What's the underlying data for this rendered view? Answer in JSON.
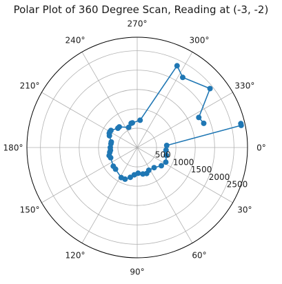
{
  "chart_data": {
    "type": "scatter",
    "projection": "polar",
    "title": "Polar Plot of 360 Degree Scan, Reading at (-3, -2)",
    "theta_direction": "clockwise",
    "theta_zero_location": "east",
    "theta_ticks": [
      "0°",
      "30°",
      "60°",
      "90°",
      "120°",
      "150°",
      "180°",
      "210°",
      "240°",
      "270°",
      "300°",
      "330°"
    ],
    "theta_tick_values": [
      0,
      30,
      60,
      90,
      120,
      150,
      180,
      210,
      240,
      270,
      300,
      330
    ],
    "r_ticks": [
      "500",
      "1000",
      "1500",
      "2000",
      "2500"
    ],
    "r_tick_values": [
      500,
      1000,
      1500,
      2000,
      2500
    ],
    "r_label_angle": 22.5,
    "rlim": [
      0,
      2850
    ],
    "grid": true,
    "marker": "circle",
    "line": true,
    "series": [
      {
        "color": "#1f77b4",
        "points": [
          {
            "theta": 347,
            "r": 2747
          },
          {
            "theta": 348,
            "r": 2747
          },
          {
            "theta": 356,
            "r": 765
          },
          {
            "theta": 5,
            "r": 748
          },
          {
            "theta": 15,
            "r": 780
          },
          {
            "theta": 27,
            "r": 830
          },
          {
            "theta": 37,
            "r": 780
          },
          {
            "theta": 50,
            "r": 680
          },
          {
            "theta": 63,
            "r": 660
          },
          {
            "theta": 70,
            "r": 715
          },
          {
            "theta": 78,
            "r": 700
          },
          {
            "theta": 88,
            "r": 665
          },
          {
            "theta": 96,
            "r": 710
          },
          {
            "theta": 103,
            "r": 790
          },
          {
            "theta": 111,
            "r": 875
          },
          {
            "theta": 118,
            "r": 880
          },
          {
            "theta": 135,
            "r": 790
          },
          {
            "theta": 142,
            "r": 785
          },
          {
            "theta": 159,
            "r": 735
          },
          {
            "theta": 164,
            "r": 755
          },
          {
            "theta": 170,
            "r": 720
          },
          {
            "theta": 174,
            "r": 695
          },
          {
            "theta": 180,
            "r": 695
          },
          {
            "theta": 188,
            "r": 685
          },
          {
            "theta": 192,
            "r": 685
          },
          {
            "theta": 203,
            "r": 780
          },
          {
            "theta": 207,
            "r": 810
          },
          {
            "theta": 210,
            "r": 815
          },
          {
            "theta": 213,
            "r": 810
          },
          {
            "theta": 225,
            "r": 705
          },
          {
            "theta": 229,
            "r": 705
          },
          {
            "theta": 247,
            "r": 565
          },
          {
            "theta": 256,
            "r": 645
          },
          {
            "theta": 259,
            "r": 650
          },
          {
            "theta": 276,
            "r": 710
          },
          {
            "theta": 296,
            "r": 2350
          },
          {
            "theta": 303,
            "r": 2160
          },
          {
            "theta": 321,
            "r": 2420
          },
          {
            "theta": 334,
            "r": 1770
          },
          {
            "theta": 340,
            "r": 1830
          }
        ]
      }
    ]
  }
}
